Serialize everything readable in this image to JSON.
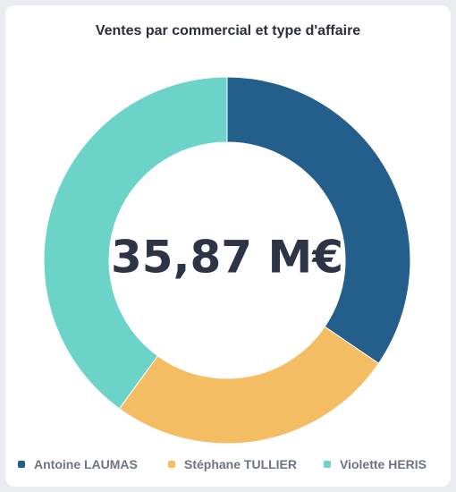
{
  "chart_data": {
    "type": "pie",
    "variant": "donut",
    "title": "Ventes par commercial et type d'affaire",
    "center_label": "35,87 M€",
    "categories": [
      "Antoine LAUMAS",
      "Stéphane TULLIER",
      "Violette HERIS"
    ],
    "values": [
      34.5,
      25.5,
      40.0
    ],
    "value_unit": "percent",
    "colors": [
      "#245f8c",
      "#f4bc63",
      "#6bd3c7"
    ],
    "legend_placement": "bottom"
  }
}
